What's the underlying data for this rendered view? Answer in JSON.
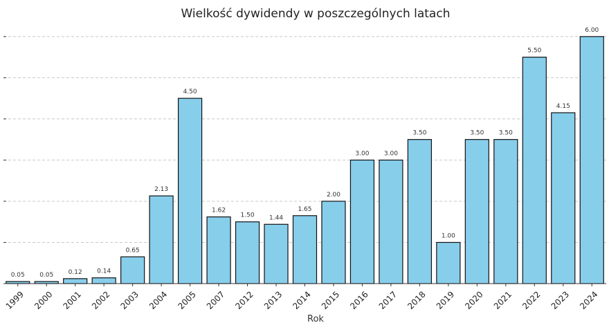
{
  "chart_data": {
    "type": "bar",
    "title": "Wielkość dywidendy w poszczególnych latach",
    "xlabel": "Rok",
    "ylabel": "",
    "categories": [
      "1999",
      "2000",
      "2001",
      "2002",
      "2003",
      "2004",
      "2005",
      "2007",
      "2012",
      "2013",
      "2014",
      "2015",
      "2016",
      "2017",
      "2018",
      "2019",
      "2020",
      "2021",
      "2022",
      "2023",
      "2024"
    ],
    "values": [
      0.05,
      0.05,
      0.12,
      0.14,
      0.65,
      2.13,
      4.5,
      1.62,
      1.5,
      1.44,
      1.65,
      2.0,
      3.0,
      3.0,
      3.5,
      1.0,
      3.5,
      3.5,
      5.5,
      4.15,
      6.0
    ],
    "data_labels": [
      "0.05",
      "0.05",
      "0.12",
      "0.14",
      "0.65",
      "2.13",
      "4.50",
      "1.62",
      "1.50",
      "1.44",
      "1.65",
      "2.00",
      "3.00",
      "3.00",
      "3.50",
      "1.00",
      "3.50",
      "3.50",
      "5.50",
      "4.15",
      "6.00"
    ],
    "ylim": [
      0,
      6.3
    ],
    "grid": true,
    "bar_color": "#87ceeb",
    "bar_edge_color": "#111111",
    "grid_color": "#c8c8c8"
  }
}
